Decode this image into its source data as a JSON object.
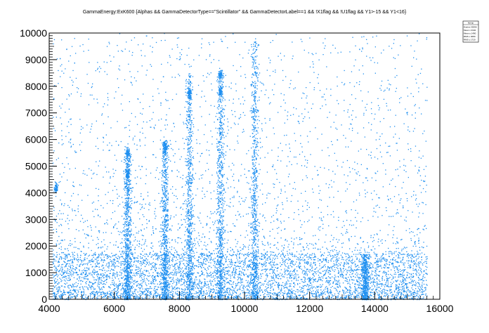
{
  "chart_data": {
    "type": "heatmap",
    "title": "GammaEnergy:ExK600 {Alphas && GammaDetectorType==\"Scintillator\" && GammaDetectorLabel==1 &&  !X1flag && !U1flag && Y1>-15 && Y1<16}",
    "xlabel": "",
    "ylabel": "",
    "xlim": [
      4000,
      16000
    ],
    "ylim": [
      0,
      10000
    ],
    "x_ticks": [
      "4000",
      "6000",
      "8000",
      "10000",
      "12000",
      "14000",
      "16000"
    ],
    "y_ticks": [
      "0",
      "1000",
      "2000",
      "3000",
      "4000",
      "5000",
      "6000",
      "7000",
      "8000",
      "9000",
      "10000"
    ],
    "marker_color": "#1e8ff0",
    "grid": false,
    "legend": "none",
    "populated_x_range": [
      4100,
      15600
    ],
    "dense_band": {
      "y_range": [
        300,
        1700
      ]
    },
    "vertical_ridges": [
      {
        "x": 6400,
        "y_max": 5500
      },
      {
        "x": 7550,
        "y_max": 6000
      },
      {
        "x": 8300,
        "y_max": 8500
      },
      {
        "x": 9250,
        "y_max": 8500
      },
      {
        "x": 10300,
        "y_max": 9800
      },
      {
        "x": 13700,
        "y_max": 1700
      }
    ],
    "hot_spots": [
      {
        "x": 6400,
        "y": 4700
      },
      {
        "x": 6400,
        "y": 5500
      },
      {
        "x": 7550,
        "y": 5700
      },
      {
        "x": 8300,
        "y": 7750
      },
      {
        "x": 9250,
        "y": 8450
      },
      {
        "x": 9250,
        "y": 7800
      },
      {
        "x": 4200,
        "y": 4200
      }
    ]
  },
  "stats_box": {
    "lines": [
      "htemp",
      "Entries  35396",
      "Mean x  9340",
      "Mean y  1490",
      "RMS x  3080",
      "RMS y  1720"
    ]
  }
}
